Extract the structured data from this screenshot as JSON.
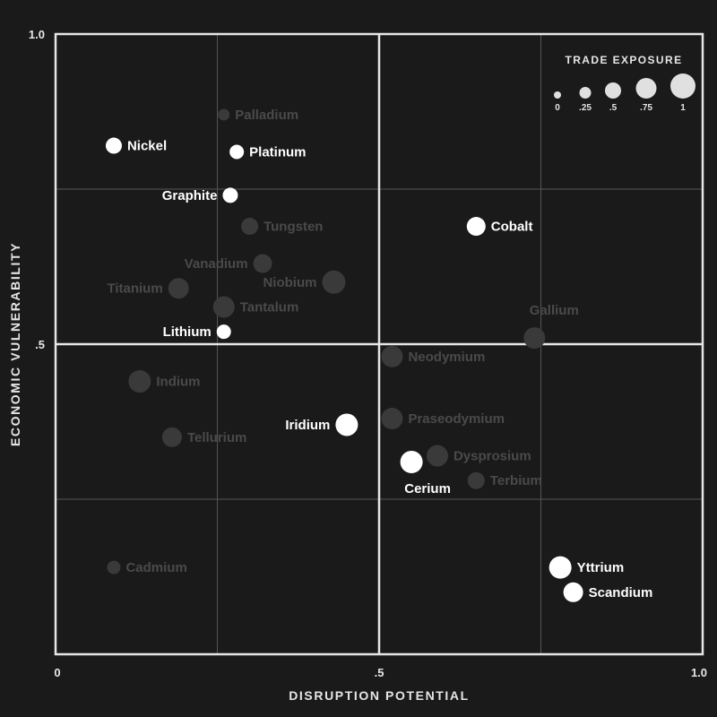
{
  "chart_data": {
    "type": "scatter",
    "title": "",
    "xlabel": "DISRUPTION POTENTIAL",
    "ylabel": "ECONOMIC VULNERABILITY",
    "xlim": [
      0,
      1
    ],
    "ylim": [
      0,
      1
    ],
    "x_ticks": [
      {
        "value": 0,
        "label": "0"
      },
      {
        "value": 0.5,
        "label": ".5"
      },
      {
        "value": 1,
        "label": "1.0"
      }
    ],
    "y_ticks": [
      {
        "value": 1,
        "label": "1.0"
      },
      {
        "value": 0.5,
        "label": ".5"
      }
    ],
    "grid": true,
    "quadrant_lines": [
      0.5
    ],
    "minor_grid": [
      0.25,
      0.75
    ],
    "colors": {
      "background": "#1a1a1a",
      "highlight": "#ffffff",
      "muted_fill": "#3a3a3a",
      "muted_text": "#4a4a4a",
      "axis": "#e6e6e6",
      "grid": "#555555"
    },
    "legend": {
      "title": "TRADE EXPOSURE",
      "position": "top-right",
      "sizes": [
        {
          "value": 0,
          "label": "0"
        },
        {
          "value": 0.25,
          "label": ".25"
        },
        {
          "value": 0.5,
          "label": ".5"
        },
        {
          "value": 0.75,
          "label": ".75"
        },
        {
          "value": 1,
          "label": "1"
        }
      ]
    },
    "points": [
      {
        "name": "Palladium",
        "x": 0.26,
        "y": 0.87,
        "exposure": 0.05,
        "highlight": false,
        "label_pos": "right"
      },
      {
        "name": "Nickel",
        "x": 0.09,
        "y": 0.82,
        "exposure": 0.3,
        "highlight": true,
        "label_pos": "right"
      },
      {
        "name": "Platinum",
        "x": 0.28,
        "y": 0.81,
        "exposure": 0.2,
        "highlight": true,
        "label_pos": "right"
      },
      {
        "name": "Graphite",
        "x": 0.27,
        "y": 0.74,
        "exposure": 0.25,
        "highlight": true,
        "label_pos": "left"
      },
      {
        "name": "Tungsten",
        "x": 0.3,
        "y": 0.69,
        "exposure": 0.35,
        "highlight": false,
        "label_pos": "right"
      },
      {
        "name": "Cobalt",
        "x": 0.65,
        "y": 0.69,
        "exposure": 0.45,
        "highlight": true,
        "label_pos": "right"
      },
      {
        "name": "Vanadium",
        "x": 0.32,
        "y": 0.63,
        "exposure": 0.45,
        "highlight": false,
        "label_pos": "left"
      },
      {
        "name": "Niobium",
        "x": 0.43,
        "y": 0.6,
        "exposure": 0.7,
        "highlight": false,
        "label_pos": "left"
      },
      {
        "name": "Titanium",
        "x": 0.19,
        "y": 0.59,
        "exposure": 0.55,
        "highlight": false,
        "label_pos": "left"
      },
      {
        "name": "Tantalum",
        "x": 0.26,
        "y": 0.56,
        "exposure": 0.6,
        "highlight": false,
        "label_pos": "right"
      },
      {
        "name": "Lithium",
        "x": 0.26,
        "y": 0.52,
        "exposure": 0.2,
        "highlight": true,
        "label_pos": "left"
      },
      {
        "name": "Gallium",
        "x": 0.74,
        "y": 0.51,
        "exposure": 0.6,
        "highlight": false,
        "label_pos": "above"
      },
      {
        "name": "Neodymium",
        "x": 0.52,
        "y": 0.48,
        "exposure": 0.6,
        "highlight": false,
        "label_pos": "right"
      },
      {
        "name": "Indium",
        "x": 0.13,
        "y": 0.44,
        "exposure": 0.65,
        "highlight": false,
        "label_pos": "right"
      },
      {
        "name": "Praseodymium",
        "x": 0.52,
        "y": 0.38,
        "exposure": 0.6,
        "highlight": false,
        "label_pos": "right"
      },
      {
        "name": "Iridium",
        "x": 0.45,
        "y": 0.37,
        "exposure": 0.65,
        "highlight": true,
        "label_pos": "left"
      },
      {
        "name": "Tellurium",
        "x": 0.18,
        "y": 0.35,
        "exposure": 0.5,
        "highlight": false,
        "label_pos": "right"
      },
      {
        "name": "Dysprosium",
        "x": 0.59,
        "y": 0.32,
        "exposure": 0.6,
        "highlight": false,
        "label_pos": "right"
      },
      {
        "name": "Cerium",
        "x": 0.55,
        "y": 0.31,
        "exposure": 0.65,
        "highlight": true,
        "label_pos": "below"
      },
      {
        "name": "Terbium",
        "x": 0.65,
        "y": 0.28,
        "exposure": 0.35,
        "highlight": false,
        "label_pos": "right"
      },
      {
        "name": "Cadmium",
        "x": 0.09,
        "y": 0.14,
        "exposure": 0.15,
        "highlight": false,
        "label_pos": "right"
      },
      {
        "name": "Yttrium",
        "x": 0.78,
        "y": 0.14,
        "exposure": 0.65,
        "highlight": true,
        "label_pos": "right"
      },
      {
        "name": "Scandium",
        "x": 0.8,
        "y": 0.1,
        "exposure": 0.5,
        "highlight": true,
        "label_pos": "right"
      }
    ]
  }
}
